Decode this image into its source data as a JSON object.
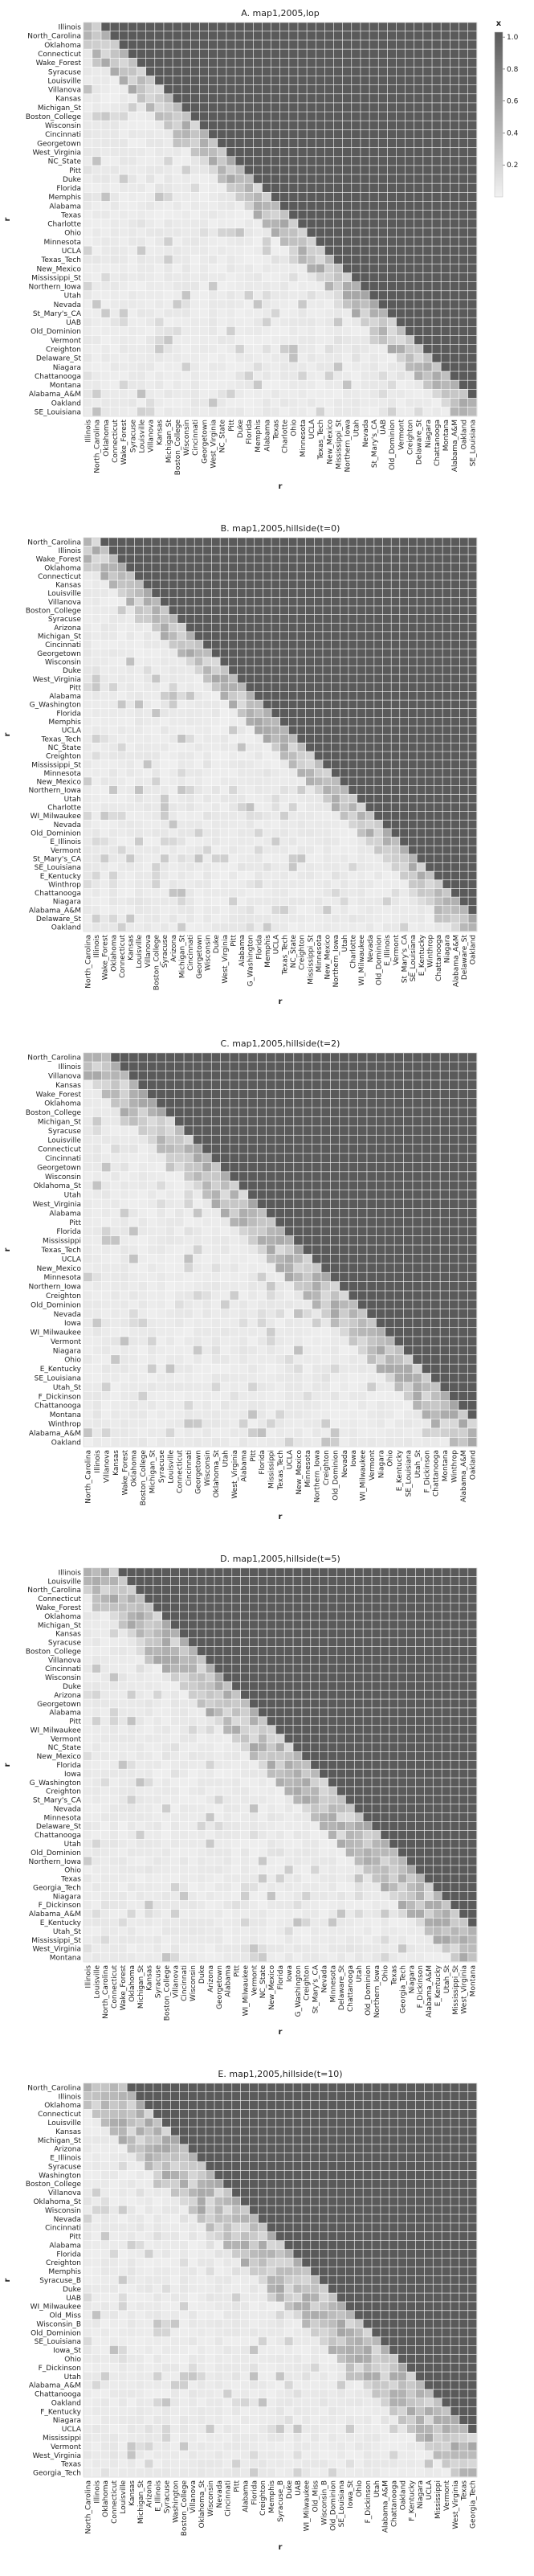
{
  "chart_data": [
    {
      "type": "heatmap",
      "title": "A. map1,2005,lop",
      "xlabel": "r",
      "ylabel": "r",
      "colorbar": {
        "label": "x",
        "range": [
          0,
          1
        ],
        "ticks": [
          "0.2",
          "0.4",
          "0.6",
          "0.8",
          "1.0"
        ],
        "colors": [
          "#f2f2f2",
          "#5a5a5a"
        ]
      },
      "row_labels": [
        "Illinois",
        "North_Carolina",
        "Oklahoma",
        "Connecticut",
        "Wake_Forest",
        "Syracuse",
        "Louisville",
        "Villanova",
        "Kansas",
        "Michigan_St",
        "Boston_College",
        "Wisconsin",
        "Cincinnati",
        "Georgetown",
        "West_Virginia",
        "NC_State",
        "Pitt",
        "Duke",
        "Florida",
        "Memphis",
        "Alabama",
        "Texas",
        "Charlotte",
        "Ohio",
        "Minnesota",
        "UCLA",
        "Texas_Tech",
        "New_Mexico",
        "Mississippi_St",
        "Northern_Iowa",
        "Utah",
        "Nevada",
        "St_Mary's_CA",
        "UAB",
        "Old_Dominion",
        "Vermont",
        "Creighton",
        "Delaware_St",
        "Niagara",
        "Chattanooga",
        "Montana",
        "Alabama_A&M",
        "Oakland",
        "SE_Louisiana"
      ]
    },
    {
      "type": "heatmap",
      "title": "B. map1,2005,hillside(t=0)",
      "xlabel": "r",
      "ylabel": "r",
      "row_labels": [
        "North_Carolina",
        "Illinois",
        "Wake_Forest",
        "Oklahoma",
        "Connecticut",
        "Kansas",
        "Louisville",
        "Villanova",
        "Boston_College",
        "Syracuse",
        "Arizona",
        "Michigan_St",
        "Cincinnati",
        "Georgetown",
        "Wisconsin",
        "Duke",
        "West_Virginia",
        "Pitt",
        "Alabama",
        "G_Washington",
        "Florida",
        "Memphis",
        "UCLA",
        "Texas_Tech",
        "NC_State",
        "Creighton",
        "Mississippi_St",
        "Minnesota",
        "New_Mexico",
        "Northern_Iowa",
        "Utah",
        "Charlotte",
        "WI_Milwaukee",
        "Nevada",
        "Old_Dominion",
        "E_Illinois",
        "Vermont",
        "St_Mary's_CA",
        "SE_Louisiana",
        "E_Kentucky",
        "Winthrop",
        "Chattanooga",
        "Niagara",
        "Alabama_A&M",
        "Delaware_St",
        "Oakland"
      ]
    },
    {
      "type": "heatmap",
      "title": "C. map1,2005,hillside(t=2)",
      "xlabel": "r",
      "ylabel": "r",
      "row_labels": [
        "North_Carolina",
        "Illinois",
        "Villanova",
        "Kansas",
        "Wake_Forest",
        "Oklahoma",
        "Boston_College",
        "Michigan_St",
        "Syracuse",
        "Louisville",
        "Connecticut",
        "Cincinnati",
        "Georgetown",
        "Wisconsin",
        "Oklahoma_St",
        "Utah",
        "West_Virginia",
        "Alabama",
        "Pitt",
        "Florida",
        "Mississippi",
        "Texas_Tech",
        "UCLA",
        "New_Mexico",
        "Minnesota",
        "Northern_Iowa",
        "Creighton",
        "Old_Dominion",
        "Nevada",
        "Iowa",
        "WI_Milwaukee",
        "Vermont",
        "Niagara",
        "Ohio",
        "E_Kentucky",
        "SE_Louisiana",
        "Utah_St",
        "F_Dickinson",
        "Chattanooga",
        "Montana",
        "Winthrop",
        "Alabama_A&M",
        "Oakland"
      ]
    },
    {
      "type": "heatmap",
      "title": "D. map1,2005,hillside(t=5)",
      "xlabel": "r",
      "ylabel": "r",
      "row_labels": [
        "Illinois",
        "Louisville",
        "North_Carolina",
        "Connecticut",
        "Wake_Forest",
        "Oklahoma",
        "Michigan_St",
        "Kansas",
        "Syracuse",
        "Boston_College",
        "Villanova",
        "Cincinnati",
        "Wisconsin",
        "Duke",
        "Arizona",
        "Georgetown",
        "Alabama",
        "Pitt",
        "WI_Milwaukee",
        "Vermont",
        "NC_State",
        "New_Mexico",
        "Florida",
        "Iowa",
        "G_Washington",
        "Creighton",
        "St_Mary's_CA",
        "Nevada",
        "Minnesota",
        "Delaware_St",
        "Chattanooga",
        "Utah",
        "Old_Dominion",
        "Northern_Iowa",
        "Ohio",
        "Texas",
        "Georgia_Tech",
        "Niagara",
        "F_Dickinson",
        "Alabama_A&M",
        "E_Kentucky",
        "Utah_St",
        "Mississippi_St",
        "West_Virginia",
        "Montana"
      ]
    },
    {
      "type": "heatmap",
      "title": "E. map1,2005,hillside(t=10)",
      "xlabel": "r",
      "ylabel": "r",
      "row_labels": [
        "North_Carolina",
        "Illinois",
        "Oklahoma",
        "Connecticut",
        "Louisville",
        "Kansas",
        "Michigan_St",
        "Arizona",
        "E_Illinois",
        "Syracuse",
        "Washington",
        "Boston_College",
        "Villanova",
        "Oklahoma_St",
        "Wisconsin",
        "Nevada",
        "Cincinnati",
        "Pitt",
        "Alabama",
        "Florida",
        "Creighton",
        "Memphis",
        "Syracuse_B",
        "Duke",
        "UAB",
        "WI_Milwaukee",
        "Old_Miss",
        "Wisconsin_B",
        "Old_Dominion",
        "SE_Louisiana",
        "Iowa_St",
        "Ohio",
        "F_Dickinson",
        "Utah",
        "Alabama_A&M",
        "Chattanooga",
        "Oakland",
        "F_Kentucky",
        "Niagara",
        "UCLA",
        "Mississippi",
        "Vermont",
        "West_Virginia",
        "Texas",
        "Georgia_Tech"
      ]
    }
  ]
}
